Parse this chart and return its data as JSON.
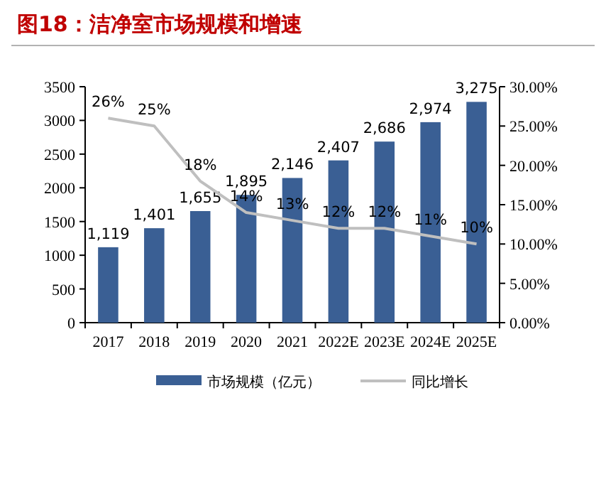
{
  "chart_data": {
    "type": "bar",
    "title": "图18：洁净室市场规模和增速",
    "categories": [
      "2017",
      "2018",
      "2019",
      "2020",
      "2021",
      "2022E",
      "2023E",
      "2024E",
      "2025E"
    ],
    "series": [
      {
        "name": "市场规模（亿元）",
        "color": "#3a5f94",
        "values": [
          1119,
          1401,
          1655,
          1895,
          2146,
          2407,
          2686,
          2974,
          3275
        ],
        "value_labels": [
          "1,119",
          "1,401",
          "1,655",
          "1,895",
          "2,146",
          "2,407",
          "2,686",
          "2,974",
          "3,275"
        ]
      },
      {
        "name": "同比增长",
        "type": "line",
        "axis": "y2",
        "color": "#bfbfbf",
        "values": [
          26,
          25,
          18,
          14,
          13,
          12,
          12,
          11,
          10
        ],
        "value_labels": [
          "26%",
          "25%",
          "18%",
          "14%",
          "13%",
          "12%",
          "12%",
          "11%",
          "10%"
        ]
      }
    ],
    "ylim": [
      0,
      3500
    ],
    "yticks": [
      0,
      500,
      1000,
      1500,
      2000,
      2500,
      3000,
      3500
    ],
    "y2lim": [
      0,
      30
    ],
    "y2ticks": [
      {
        "value": 0,
        "label": "0.00%"
      },
      {
        "value": 5,
        "label": "5.00%"
      },
      {
        "value": 10,
        "label": "10.00%"
      },
      {
        "value": 15,
        "label": "15.00%"
      },
      {
        "value": 20,
        "label": "20.00%"
      },
      {
        "value": 25,
        "label": "25.00%"
      },
      {
        "value": 30,
        "label": "30.00%"
      }
    ],
    "grid": false,
    "legend": "bottom",
    "marker": "none"
  }
}
